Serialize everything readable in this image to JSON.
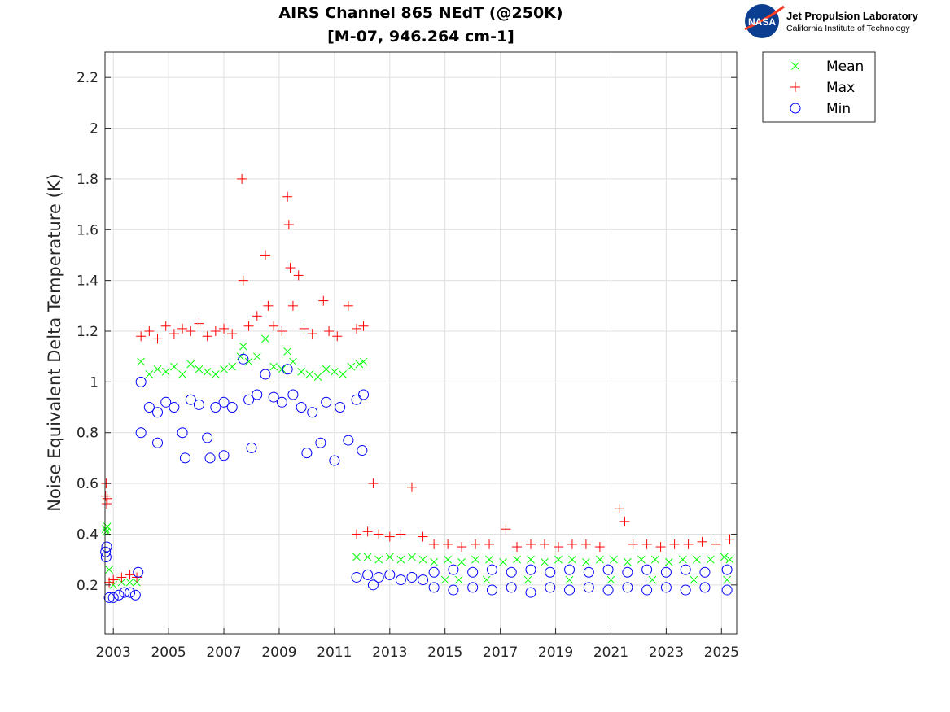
{
  "logo": {
    "nasa_text": "NASA",
    "org_name": "Jet Propulsion Laboratory",
    "org_subtitle": "California Institute of Technology"
  },
  "chart_data": {
    "type": "scatter",
    "title": [
      "AIRS Channel 865 NEdT (@250K)",
      "[M-07, 946.264 cm-1]"
    ],
    "xlabel": "",
    "ylabel": "Noise Equivalent Delta Temperature (K)",
    "xlim": [
      2002.7,
      2025.55
    ],
    "ylim": [
      0.007,
      2.3
    ],
    "xticks": [
      "2003",
      "2005",
      "2007",
      "2009",
      "2011",
      "2013",
      "2015",
      "2017",
      "2019",
      "2021",
      "2023",
      "2025"
    ],
    "yticks": [
      "0.2",
      "0.4",
      "0.6",
      "0.8",
      "1",
      "1.2",
      "1.4",
      "1.6",
      "1.8",
      "2",
      "2.2"
    ],
    "grid": true,
    "legend_position": "outside-top-right",
    "series": [
      {
        "name": "Mean",
        "marker": "x",
        "color": "#00ff00",
        "points": [
          [
            2002.72,
            0.42
          ],
          [
            2002.75,
            0.41
          ],
          [
            2002.78,
            0.43
          ],
          [
            2002.85,
            0.26
          ],
          [
            2003.0,
            0.2
          ],
          [
            2003.3,
            0.21
          ],
          [
            2003.6,
            0.21
          ],
          [
            2003.85,
            0.21
          ],
          [
            2004.0,
            1.08
          ],
          [
            2004.3,
            1.03
          ],
          [
            2004.6,
            1.05
          ],
          [
            2004.9,
            1.04
          ],
          [
            2005.2,
            1.06
          ],
          [
            2005.5,
            1.03
          ],
          [
            2005.8,
            1.07
          ],
          [
            2006.1,
            1.05
          ],
          [
            2006.4,
            1.04
          ],
          [
            2006.7,
            1.03
          ],
          [
            2007.0,
            1.05
          ],
          [
            2007.3,
            1.06
          ],
          [
            2007.6,
            1.1
          ],
          [
            2007.7,
            1.14
          ],
          [
            2007.9,
            1.08
          ],
          [
            2008.2,
            1.1
          ],
          [
            2008.5,
            1.17
          ],
          [
            2008.8,
            1.06
          ],
          [
            2009.1,
            1.05
          ],
          [
            2009.3,
            1.12
          ],
          [
            2009.5,
            1.08
          ],
          [
            2009.8,
            1.04
          ],
          [
            2010.1,
            1.03
          ],
          [
            2010.4,
            1.02
          ],
          [
            2010.7,
            1.05
          ],
          [
            2011.0,
            1.04
          ],
          [
            2011.3,
            1.03
          ],
          [
            2011.6,
            1.06
          ],
          [
            2011.9,
            1.07
          ],
          [
            2012.05,
            1.08
          ],
          [
            2011.8,
            0.31
          ],
          [
            2012.2,
            0.31
          ],
          [
            2012.6,
            0.3
          ],
          [
            2013.0,
            0.31
          ],
          [
            2013.4,
            0.3
          ],
          [
            2013.8,
            0.31
          ],
          [
            2014.2,
            0.3
          ],
          [
            2014.6,
            0.29
          ],
          [
            2015.1,
            0.3
          ],
          [
            2015.6,
            0.29
          ],
          [
            2016.1,
            0.3
          ],
          [
            2016.6,
            0.3
          ],
          [
            2017.1,
            0.29
          ],
          [
            2017.6,
            0.3
          ],
          [
            2018.1,
            0.3
          ],
          [
            2018.6,
            0.29
          ],
          [
            2019.1,
            0.3
          ],
          [
            2019.6,
            0.3
          ],
          [
            2020.1,
            0.29
          ],
          [
            2020.6,
            0.3
          ],
          [
            2021.1,
            0.3
          ],
          [
            2021.6,
            0.29
          ],
          [
            2022.1,
            0.3
          ],
          [
            2022.6,
            0.3
          ],
          [
            2023.1,
            0.29
          ],
          [
            2023.6,
            0.3
          ],
          [
            2024.1,
            0.3
          ],
          [
            2024.6,
            0.3
          ],
          [
            2025.1,
            0.31
          ],
          [
            2025.3,
            0.3
          ],
          [
            2015.0,
            0.22
          ],
          [
            2015.5,
            0.22
          ],
          [
            2016.5,
            0.22
          ],
          [
            2018.0,
            0.22
          ],
          [
            2019.5,
            0.22
          ],
          [
            2021.0,
            0.22
          ],
          [
            2022.5,
            0.22
          ],
          [
            2024.0,
            0.22
          ],
          [
            2025.2,
            0.22
          ]
        ]
      },
      {
        "name": "Max",
        "marker": "+",
        "color": "#ff0000",
        "points": [
          [
            2002.72,
            0.55
          ],
          [
            2002.74,
            0.6
          ],
          [
            2002.76,
            0.52
          ],
          [
            2002.78,
            0.54
          ],
          [
            2002.85,
            0.21
          ],
          [
            2003.0,
            0.22
          ],
          [
            2003.3,
            0.23
          ],
          [
            2003.6,
            0.24
          ],
          [
            2003.85,
            0.23
          ],
          [
            2004.0,
            1.18
          ],
          [
            2004.3,
            1.2
          ],
          [
            2004.6,
            1.17
          ],
          [
            2004.9,
            1.22
          ],
          [
            2005.2,
            1.19
          ],
          [
            2005.5,
            1.21
          ],
          [
            2005.8,
            1.2
          ],
          [
            2006.1,
            1.23
          ],
          [
            2006.4,
            1.18
          ],
          [
            2006.7,
            1.2
          ],
          [
            2007.0,
            1.21
          ],
          [
            2007.3,
            1.19
          ],
          [
            2007.65,
            1.8
          ],
          [
            2007.7,
            1.4
          ],
          [
            2007.9,
            1.22
          ],
          [
            2008.2,
            1.26
          ],
          [
            2008.5,
            1.5
          ],
          [
            2008.6,
            1.3
          ],
          [
            2008.8,
            1.22
          ],
          [
            2009.1,
            1.2
          ],
          [
            2009.3,
            1.73
          ],
          [
            2009.35,
            1.62
          ],
          [
            2009.4,
            1.45
          ],
          [
            2009.5,
            1.3
          ],
          [
            2009.7,
            1.42
          ],
          [
            2009.9,
            1.21
          ],
          [
            2010.2,
            1.19
          ],
          [
            2010.6,
            1.32
          ],
          [
            2010.8,
            1.2
          ],
          [
            2011.1,
            1.18
          ],
          [
            2011.5,
            1.3
          ],
          [
            2011.8,
            1.21
          ],
          [
            2012.05,
            1.22
          ],
          [
            2011.8,
            0.4
          ],
          [
            2012.2,
            0.41
          ],
          [
            2012.4,
            0.6
          ],
          [
            2012.6,
            0.4
          ],
          [
            2013.0,
            0.39
          ],
          [
            2013.4,
            0.4
          ],
          [
            2013.8,
            0.585
          ],
          [
            2014.2,
            0.39
          ],
          [
            2014.6,
            0.36
          ],
          [
            2015.1,
            0.36
          ],
          [
            2015.6,
            0.35
          ],
          [
            2016.1,
            0.36
          ],
          [
            2016.6,
            0.36
          ],
          [
            2017.2,
            0.42
          ],
          [
            2017.6,
            0.35
          ],
          [
            2018.1,
            0.36
          ],
          [
            2018.6,
            0.36
          ],
          [
            2019.1,
            0.35
          ],
          [
            2019.6,
            0.36
          ],
          [
            2020.1,
            0.36
          ],
          [
            2020.6,
            0.35
          ],
          [
            2021.3,
            0.5
          ],
          [
            2021.5,
            0.45
          ],
          [
            2021.8,
            0.36
          ],
          [
            2022.3,
            0.36
          ],
          [
            2022.8,
            0.35
          ],
          [
            2023.3,
            0.36
          ],
          [
            2023.8,
            0.36
          ],
          [
            2024.3,
            0.37
          ],
          [
            2024.8,
            0.36
          ],
          [
            2025.3,
            0.38
          ]
        ]
      },
      {
        "name": "Min",
        "marker": "o",
        "color": "#0000ff",
        "points": [
          [
            2002.72,
            0.33
          ],
          [
            2002.74,
            0.31
          ],
          [
            2002.76,
            0.35
          ],
          [
            2002.85,
            0.15
          ],
          [
            2003.0,
            0.15
          ],
          [
            2003.2,
            0.16
          ],
          [
            2003.4,
            0.17
          ],
          [
            2003.6,
            0.17
          ],
          [
            2003.8,
            0.16
          ],
          [
            2003.9,
            0.25
          ],
          [
            2004.0,
            1.0
          ],
          [
            2004.0,
            0.8
          ],
          [
            2004.3,
            0.9
          ],
          [
            2004.6,
            0.88
          ],
          [
            2004.6,
            0.76
          ],
          [
            2004.9,
            0.92
          ],
          [
            2005.2,
            0.9
          ],
          [
            2005.5,
            0.8
          ],
          [
            2005.6,
            0.7
          ],
          [
            2005.8,
            0.93
          ],
          [
            2006.1,
            0.91
          ],
          [
            2006.4,
            0.78
          ],
          [
            2006.5,
            0.7
          ],
          [
            2006.7,
            0.9
          ],
          [
            2007.0,
            0.92
          ],
          [
            2007.0,
            0.71
          ],
          [
            2007.3,
            0.9
          ],
          [
            2007.7,
            1.09
          ],
          [
            2007.9,
            0.93
          ],
          [
            2008.0,
            0.74
          ],
          [
            2008.2,
            0.95
          ],
          [
            2008.5,
            1.03
          ],
          [
            2008.8,
            0.94
          ],
          [
            2009.1,
            0.92
          ],
          [
            2009.3,
            1.05
          ],
          [
            2009.5,
            0.95
          ],
          [
            2009.8,
            0.9
          ],
          [
            2010.0,
            0.72
          ],
          [
            2010.2,
            0.88
          ],
          [
            2010.5,
            0.76
          ],
          [
            2010.7,
            0.92
          ],
          [
            2011.0,
            0.69
          ],
          [
            2011.2,
            0.9
          ],
          [
            2011.5,
            0.77
          ],
          [
            2011.8,
            0.93
          ],
          [
            2012.0,
            0.73
          ],
          [
            2012.05,
            0.95
          ],
          [
            2011.8,
            0.23
          ],
          [
            2012.2,
            0.24
          ],
          [
            2012.4,
            0.2
          ],
          [
            2012.6,
            0.23
          ],
          [
            2013.0,
            0.24
          ],
          [
            2013.4,
            0.22
          ],
          [
            2013.8,
            0.23
          ],
          [
            2014.2,
            0.22
          ],
          [
            2014.6,
            0.25
          ],
          [
            2014.6,
            0.19
          ],
          [
            2015.3,
            0.26
          ],
          [
            2015.3,
            0.18
          ],
          [
            2016.0,
            0.25
          ],
          [
            2016.0,
            0.19
          ],
          [
            2016.7,
            0.26
          ],
          [
            2016.7,
            0.18
          ],
          [
            2017.4,
            0.25
          ],
          [
            2017.4,
            0.19
          ],
          [
            2018.1,
            0.26
          ],
          [
            2018.1,
            0.17
          ],
          [
            2018.8,
            0.25
          ],
          [
            2018.8,
            0.19
          ],
          [
            2019.5,
            0.26
          ],
          [
            2019.5,
            0.18
          ],
          [
            2020.2,
            0.25
          ],
          [
            2020.2,
            0.19
          ],
          [
            2020.9,
            0.26
          ],
          [
            2020.9,
            0.18
          ],
          [
            2021.6,
            0.25
          ],
          [
            2021.6,
            0.19
          ],
          [
            2022.3,
            0.26
          ],
          [
            2022.3,
            0.18
          ],
          [
            2023.0,
            0.25
          ],
          [
            2023.0,
            0.19
          ],
          [
            2023.7,
            0.26
          ],
          [
            2023.7,
            0.18
          ],
          [
            2024.4,
            0.25
          ],
          [
            2024.4,
            0.19
          ],
          [
            2025.2,
            0.26
          ],
          [
            2025.2,
            0.18
          ]
        ]
      }
    ]
  }
}
